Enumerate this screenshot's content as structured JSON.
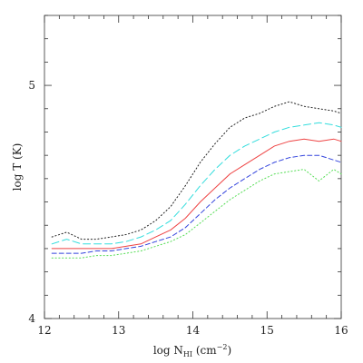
{
  "chart_data": {
    "type": "line",
    "title": "",
    "xlabel": "log N",
    "xlabel_subscript": "HI",
    "xlabel_unit_open": " (cm",
    "xlabel_unit_sup": "−2",
    "xlabel_unit_close": ")",
    "ylabel": "log T (K)",
    "xlim": [
      12,
      16
    ],
    "ylim": [
      4,
      5.3
    ],
    "xtick_labels": [
      "12",
      "13",
      "14",
      "15",
      "16"
    ],
    "ytick_labels": [
      "4",
      "5"
    ],
    "xticks": [
      12,
      13,
      14,
      15,
      16
    ],
    "yticks": [
      4,
      5
    ],
    "xminor_step": 0.2,
    "yminor_step": 0.1,
    "grid": false,
    "series": [
      {
        "color": "#222222",
        "dash": "dotted",
        "x": [
          12.1,
          12.3,
          12.5,
          12.7,
          12.9,
          13.1,
          13.3,
          13.5,
          13.7,
          13.9,
          14.1,
          14.3,
          14.5,
          14.7,
          14.9,
          15.1,
          15.3,
          15.5,
          15.7,
          15.9,
          16.0
        ],
        "y": [
          4.35,
          4.37,
          4.34,
          4.34,
          4.35,
          4.36,
          4.38,
          4.42,
          4.48,
          4.57,
          4.67,
          4.75,
          4.82,
          4.86,
          4.88,
          4.91,
          4.93,
          4.91,
          4.9,
          4.89,
          4.88
        ]
      },
      {
        "color": "#33dddd",
        "dash": "long-dash",
        "x": [
          12.1,
          12.3,
          12.5,
          12.7,
          12.9,
          13.1,
          13.3,
          13.5,
          13.7,
          13.9,
          14.1,
          14.3,
          14.5,
          14.7,
          14.9,
          15.1,
          15.3,
          15.5,
          15.7,
          15.9,
          16.0
        ],
        "y": [
          4.32,
          4.34,
          4.32,
          4.32,
          4.32,
          4.33,
          4.35,
          4.38,
          4.42,
          4.49,
          4.57,
          4.64,
          4.7,
          4.74,
          4.77,
          4.8,
          4.82,
          4.83,
          4.84,
          4.83,
          4.82
        ]
      },
      {
        "color": "#ee4444",
        "dash": "solid",
        "x": [
          12.1,
          12.3,
          12.5,
          12.7,
          12.9,
          13.1,
          13.3,
          13.5,
          13.7,
          13.9,
          14.1,
          14.3,
          14.5,
          14.7,
          14.9,
          15.1,
          15.3,
          15.5,
          15.7,
          15.9,
          16.0
        ],
        "y": [
          4.3,
          4.3,
          4.3,
          4.3,
          4.3,
          4.31,
          4.32,
          4.35,
          4.38,
          4.43,
          4.5,
          4.56,
          4.62,
          4.66,
          4.7,
          4.74,
          4.76,
          4.77,
          4.76,
          4.77,
          4.76
        ]
      },
      {
        "color": "#3344dd",
        "dash": "dashed",
        "x": [
          12.1,
          12.3,
          12.5,
          12.7,
          12.9,
          13.1,
          13.3,
          13.5,
          13.7,
          13.9,
          14.1,
          14.3,
          14.5,
          14.7,
          14.9,
          15.1,
          15.3,
          15.5,
          15.7,
          15.9,
          16.0
        ],
        "y": [
          4.28,
          4.28,
          4.28,
          4.29,
          4.29,
          4.3,
          4.31,
          4.33,
          4.35,
          4.39,
          4.45,
          4.51,
          4.56,
          4.6,
          4.64,
          4.67,
          4.69,
          4.7,
          4.7,
          4.68,
          4.67
        ]
      },
      {
        "color": "#55dd55",
        "dash": "dotted",
        "x": [
          12.1,
          12.3,
          12.5,
          12.7,
          12.9,
          13.1,
          13.3,
          13.5,
          13.7,
          13.9,
          14.1,
          14.3,
          14.5,
          14.7,
          14.9,
          15.1,
          15.3,
          15.5,
          15.7,
          15.9,
          16.0
        ],
        "y": [
          4.26,
          4.26,
          4.26,
          4.27,
          4.27,
          4.28,
          4.29,
          4.31,
          4.33,
          4.36,
          4.41,
          4.46,
          4.51,
          4.55,
          4.59,
          4.62,
          4.63,
          4.64,
          4.59,
          4.64,
          4.62
        ]
      }
    ]
  }
}
